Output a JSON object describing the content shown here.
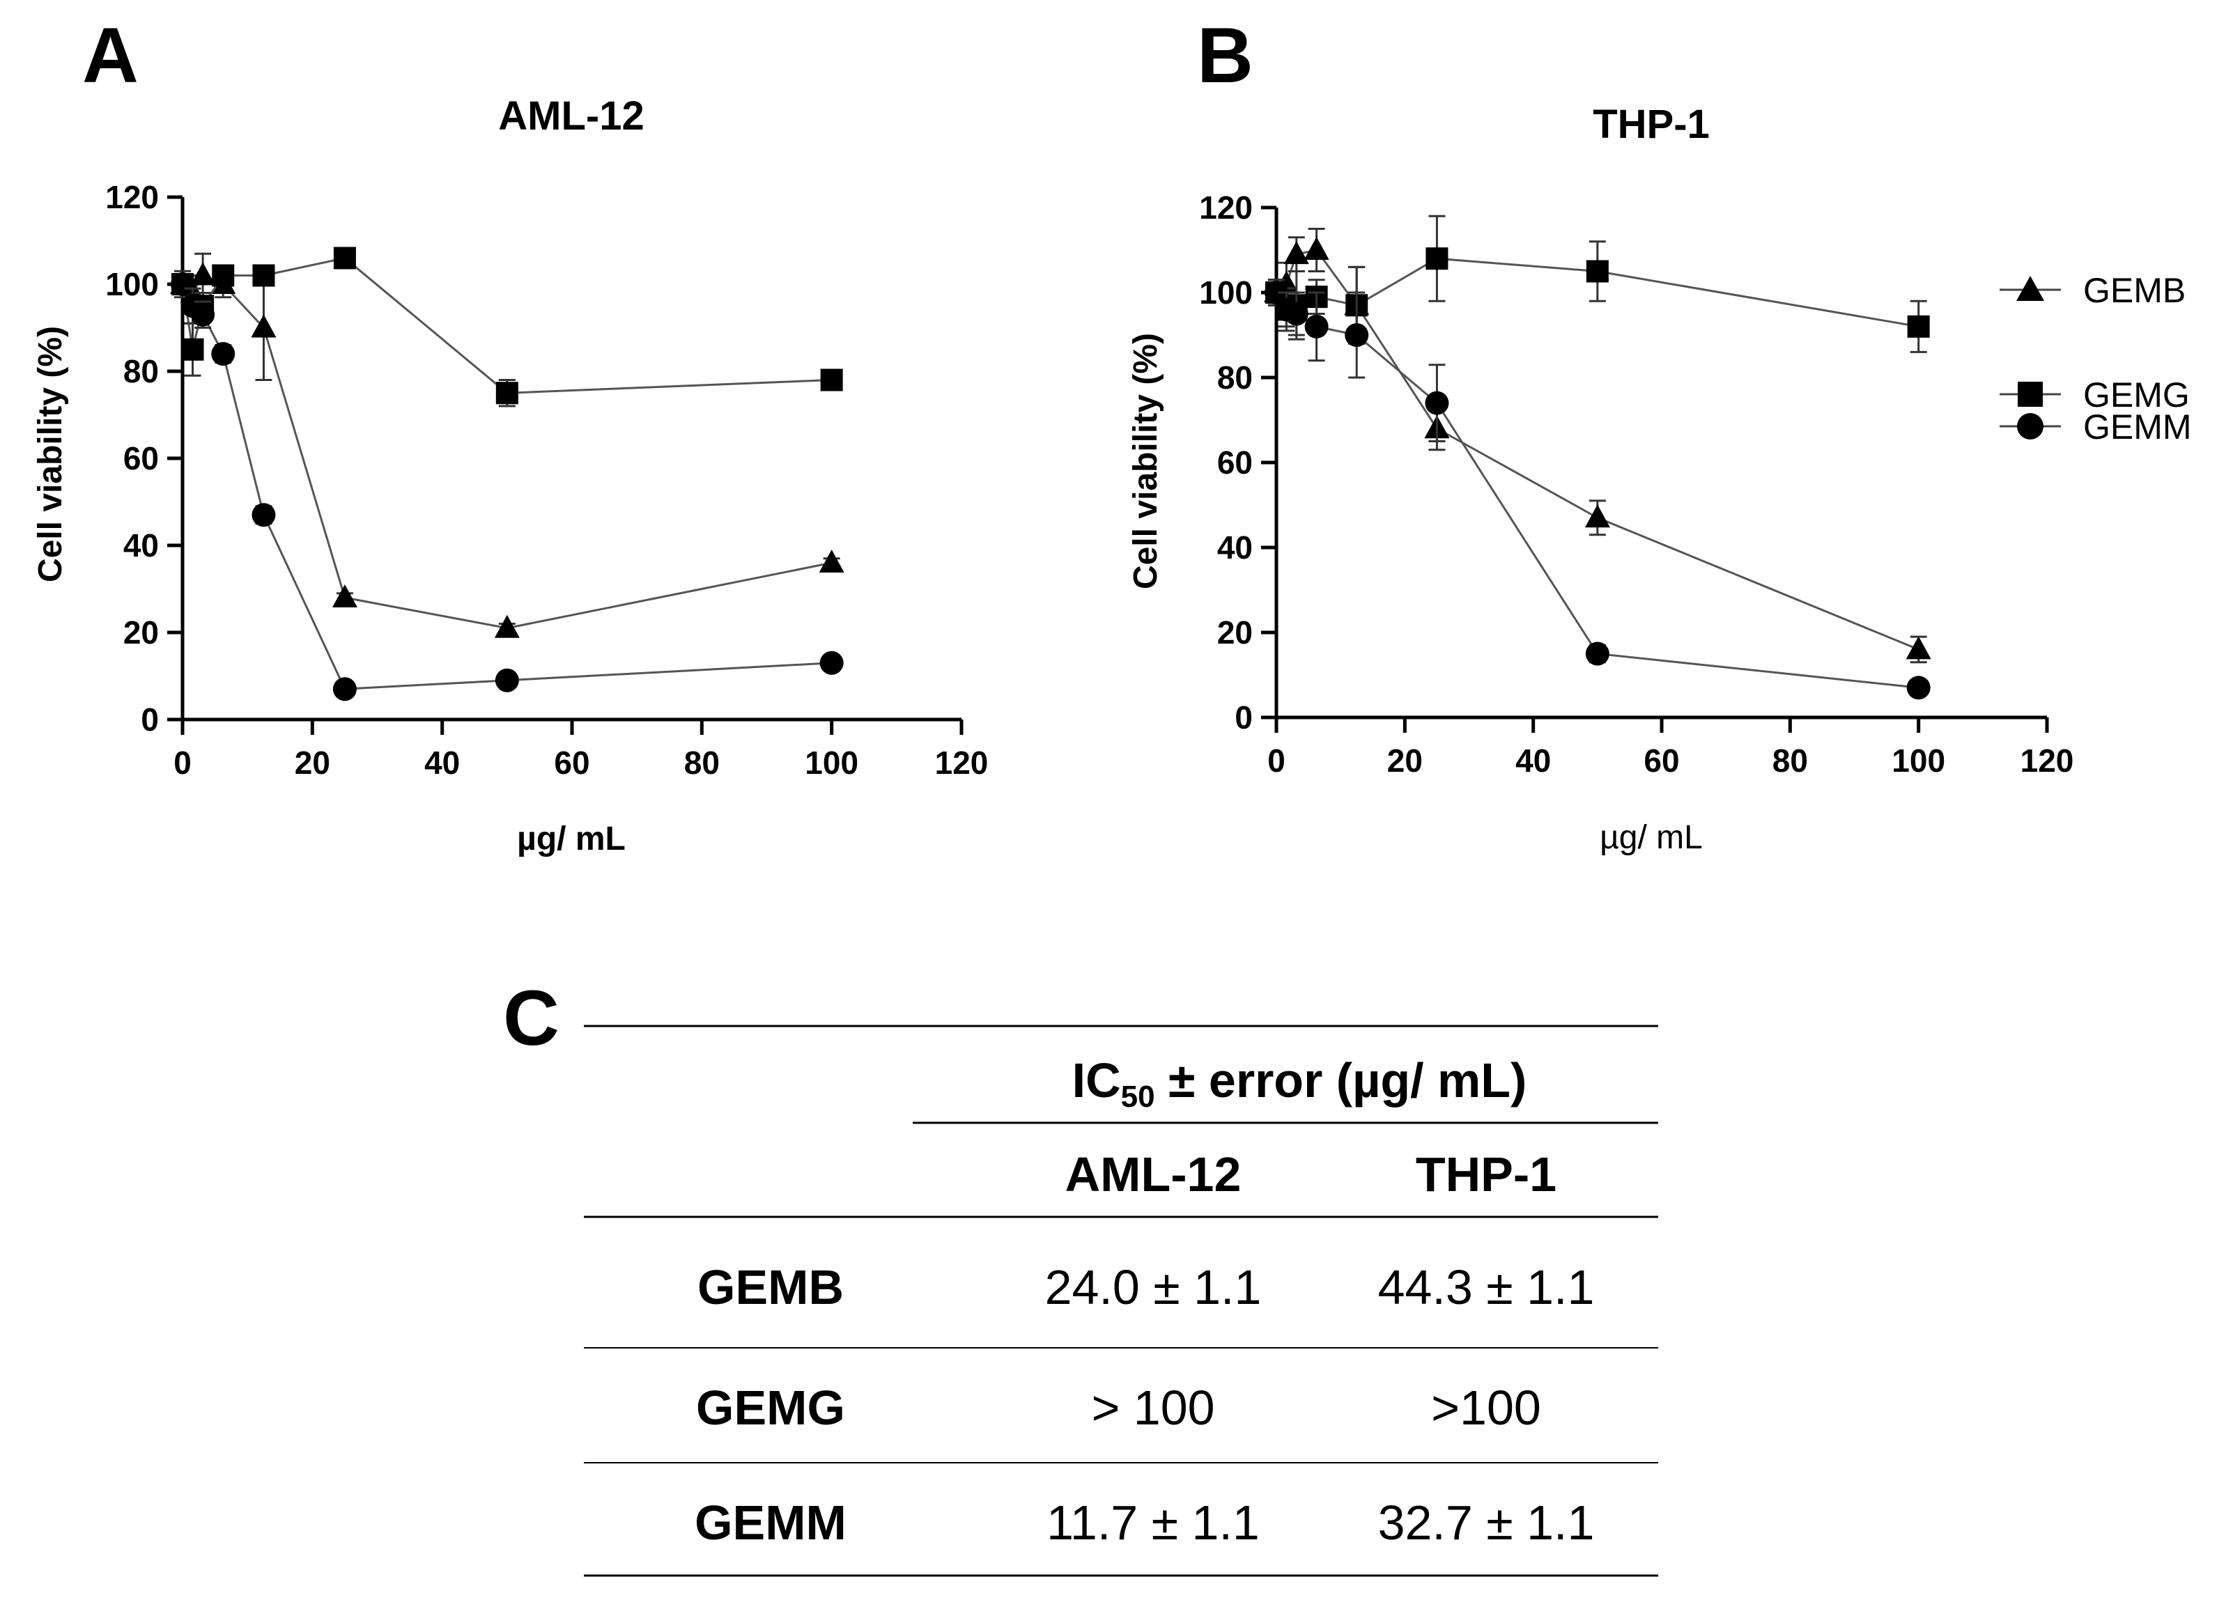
{
  "panels": {
    "a": "A",
    "b": "B",
    "c": "C"
  },
  "legend": [
    {
      "name": "GEMB",
      "marker": "triangle"
    },
    {
      "name": "GEMG",
      "marker": "square"
    },
    {
      "name": "GEMM",
      "marker": "circle"
    }
  ],
  "chart_data": [
    {
      "type": "line",
      "title": "AML-12",
      "xlabel": "µg/ mL",
      "ylabel": "Cell viability (%)",
      "xlim": [
        0,
        120
      ],
      "ylim": [
        0,
        120
      ],
      "xticks": [
        0,
        20,
        40,
        60,
        80,
        100,
        120
      ],
      "yticks": [
        0,
        20,
        40,
        60,
        80,
        100,
        120
      ],
      "grid": false,
      "series": [
        {
          "name": "GEMB",
          "marker": "triangle",
          "x": [
            0,
            1.56,
            3.125,
            6.25,
            12.5,
            25,
            50,
            100
          ],
          "y": [
            100,
            98,
            102,
            100,
            90,
            28,
            21,
            36
          ],
          "err": [
            3,
            4,
            5,
            3,
            12,
            1,
            1,
            1
          ]
        },
        {
          "name": "GEMG",
          "marker": "square",
          "x": [
            0,
            1.56,
            3.125,
            6.25,
            12.5,
            25,
            50,
            100
          ],
          "y": [
            100,
            85,
            95,
            102,
            102,
            106,
            75,
            78
          ],
          "err": [
            2,
            6,
            3,
            2,
            2,
            1,
            3,
            1
          ]
        },
        {
          "name": "GEMM",
          "marker": "circle",
          "x": [
            0,
            1.56,
            3.125,
            6.25,
            12.5,
            25,
            50,
            100
          ],
          "y": [
            100,
            95,
            93,
            84,
            47,
            7,
            9,
            13
          ],
          "err": [
            2,
            4,
            3,
            2,
            2,
            1,
            1,
            1
          ]
        }
      ]
    },
    {
      "type": "line",
      "title": "THP-1",
      "xlabel": "µg/ mL",
      "ylabel": "Cell viability (%)",
      "xlim": [
        0,
        120
      ],
      "ylim": [
        0,
        120
      ],
      "xticks": [
        0,
        20,
        40,
        60,
        80,
        100,
        120
      ],
      "yticks": [
        0,
        20,
        40,
        60,
        80,
        100,
        120
      ],
      "grid": false,
      "series": [
        {
          "name": "GEMB",
          "marker": "triangle",
          "x": [
            0,
            1.56,
            3.125,
            6.25,
            12.5,
            25,
            50,
            100
          ],
          "y": [
            100,
            102,
            109,
            110,
            97,
            68,
            47,
            16
          ],
          "err": [
            3,
            5,
            4,
            5,
            9,
            5,
            4,
            3
          ]
        },
        {
          "name": "GEMG",
          "marker": "square",
          "x": [
            0,
            1.56,
            3.125,
            6.25,
            12.5,
            25,
            50,
            100
          ],
          "y": [
            100,
            96,
            97,
            99,
            97,
            108,
            105,
            92
          ],
          "err": [
            3,
            5,
            8,
            4,
            9,
            10,
            7,
            6
          ]
        },
        {
          "name": "GEMM",
          "marker": "circle",
          "x": [
            0,
            1.56,
            3.125,
            6.25,
            12.5,
            25,
            50,
            100
          ],
          "y": [
            100,
            96,
            95,
            92,
            90,
            74,
            15,
            7
          ],
          "err": [
            3,
            4,
            5,
            8,
            10,
            9,
            2,
            1
          ]
        }
      ]
    },
    {
      "type": "table",
      "header_group": "IC",
      "header_group_sub": "50",
      "header_group_suffix": " ± error (µg/ mL)",
      "columns": [
        "AML-12",
        "THP-1"
      ],
      "rows": [
        {
          "label": "GEMB",
          "values": [
            "24.0 ± 1.1",
            "44.3 ± 1.1"
          ]
        },
        {
          "label": "GEMG",
          "values": [
            "> 100",
            ">100"
          ]
        },
        {
          "label": "GEMM",
          "values": [
            "11.7 ± 1.1",
            "32.7 ± 1.1"
          ]
        }
      ]
    }
  ]
}
